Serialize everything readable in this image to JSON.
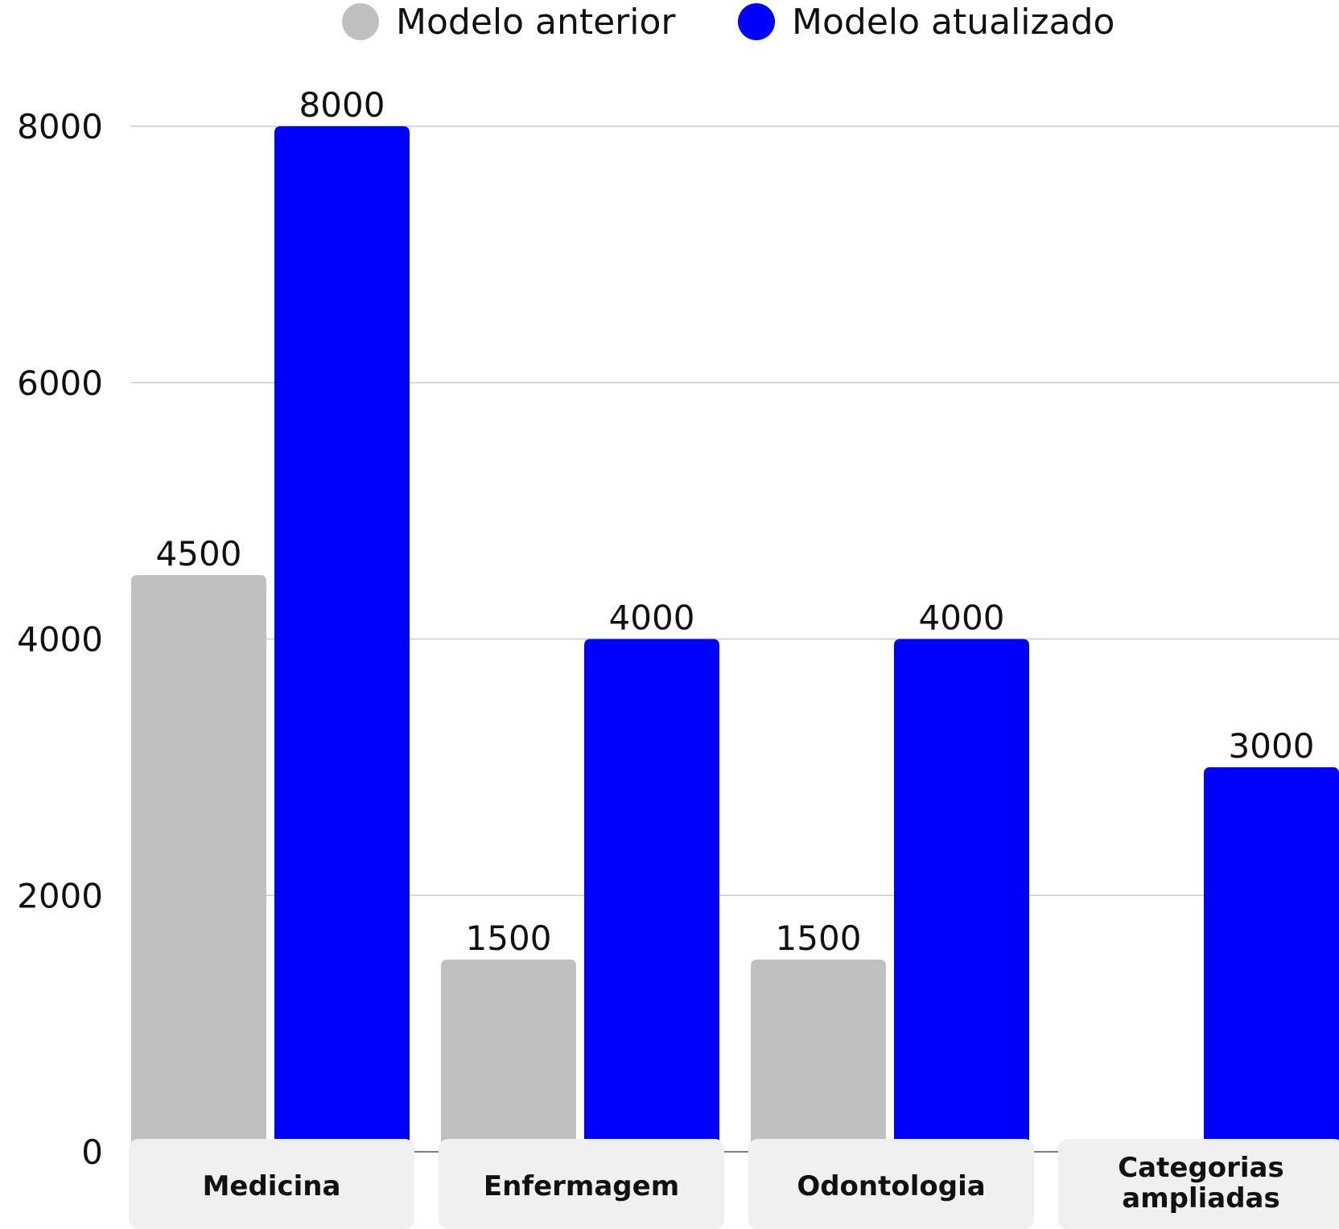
{
  "chart_data": {
    "type": "bar",
    "title": "",
    "xlabel": "",
    "ylabel": "",
    "categories": [
      "Medicina",
      "Enfermagem",
      "Odontologia",
      "Categorias ampliadas"
    ],
    "series": [
      {
        "name": "Modelo anterior",
        "color": "#c0c0c0",
        "values": [
          4500,
          1500,
          1500,
          null
        ]
      },
      {
        "name": "Modelo atualizado",
        "color": "#0000ff",
        "values": [
          8000,
          4000,
          4000,
          3000
        ]
      }
    ],
    "ylim": [
      0,
      8000
    ],
    "yticks": [
      0,
      2000,
      4000,
      6000,
      8000
    ],
    "grid": true,
    "legend": "top-center",
    "category_label_background": "#f0f0f0"
  }
}
